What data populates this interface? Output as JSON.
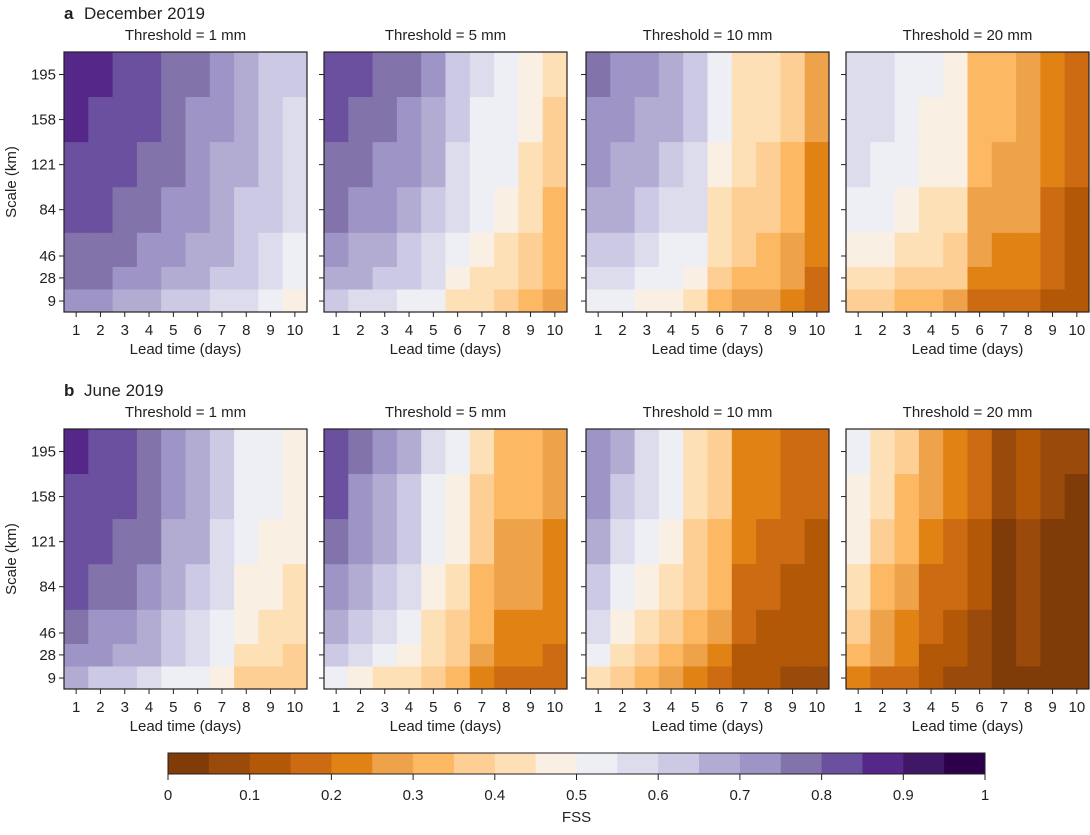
{
  "figure": {
    "sections": [
      {
        "letter": "a",
        "title": "December 2019"
      },
      {
        "letter": "b",
        "title": "June 2019"
      }
    ],
    "colorbar": {
      "label": "FSS",
      "ticks": [
        "0",
        "0.1",
        "0.2",
        "0.3",
        "0.4",
        "0.5",
        "0.6",
        "0.7",
        "0.8",
        "0.9",
        "1"
      ],
      "range": [
        0,
        1
      ],
      "bin_width": 0.05,
      "colors": [
        "#7f3b08",
        "#9a4a0a",
        "#b35806",
        "#cc6b12",
        "#e08214",
        "#eea24a",
        "#fdb863",
        "#fdcf94",
        "#fee0b6",
        "#f9efe3",
        "#eeeff4",
        "#dcdcec",
        "#cbc9e3",
        "#b2abd2",
        "#9e95c6",
        "#8273ab",
        "#6b50a0",
        "#542788",
        "#3f1766",
        "#2d004b"
      ]
    }
  },
  "chart_data": [
    {
      "type": "heatmap",
      "section": "a",
      "month": "December 2019",
      "title": "Threshold = 1 mm",
      "xlabel": "Lead time (days)",
      "ylabel": "Scale (km)",
      "x": [
        1,
        2,
        3,
        4,
        5,
        6,
        7,
        8,
        9,
        10
      ],
      "y": [
        195,
        158,
        121,
        84,
        46,
        28,
        9
      ],
      "ylim": [
        0,
        213.5
      ],
      "values": [
        [
          0.875,
          0.875,
          0.825,
          0.825,
          0.775,
          0.775,
          0.725,
          0.675,
          0.625,
          0.625
        ],
        [
          0.875,
          0.825,
          0.825,
          0.825,
          0.775,
          0.725,
          0.725,
          0.675,
          0.625,
          0.575
        ],
        [
          0.825,
          0.825,
          0.825,
          0.775,
          0.775,
          0.725,
          0.675,
          0.675,
          0.625,
          0.575
        ],
        [
          0.825,
          0.825,
          0.775,
          0.775,
          0.725,
          0.725,
          0.675,
          0.625,
          0.625,
          0.575
        ],
        [
          0.775,
          0.775,
          0.775,
          0.725,
          0.725,
          0.675,
          0.675,
          0.625,
          0.575,
          0.525
        ],
        [
          0.775,
          0.775,
          0.725,
          0.725,
          0.675,
          0.675,
          0.625,
          0.625,
          0.575,
          0.525
        ],
        [
          0.725,
          0.725,
          0.675,
          0.675,
          0.625,
          0.625,
          0.575,
          0.575,
          0.525,
          0.475
        ]
      ]
    },
    {
      "type": "heatmap",
      "section": "a",
      "month": "December 2019",
      "title": "Threshold = 5 mm",
      "xlabel": "Lead time (days)",
      "ylabel": "",
      "x": [
        1,
        2,
        3,
        4,
        5,
        6,
        7,
        8,
        9,
        10
      ],
      "y": [
        195,
        158,
        121,
        84,
        46,
        28,
        9
      ],
      "ylim": [
        0,
        213.5
      ],
      "values": [
        [
          0.825,
          0.825,
          0.775,
          0.775,
          0.725,
          0.625,
          0.575,
          0.525,
          0.475,
          0.425
        ],
        [
          0.825,
          0.775,
          0.775,
          0.725,
          0.675,
          0.625,
          0.525,
          0.525,
          0.475,
          0.375
        ],
        [
          0.775,
          0.775,
          0.725,
          0.725,
          0.675,
          0.575,
          0.525,
          0.525,
          0.425,
          0.375
        ],
        [
          0.775,
          0.725,
          0.725,
          0.675,
          0.625,
          0.575,
          0.525,
          0.475,
          0.425,
          0.325
        ],
        [
          0.725,
          0.675,
          0.675,
          0.625,
          0.575,
          0.525,
          0.475,
          0.425,
          0.375,
          0.325
        ],
        [
          0.675,
          0.675,
          0.625,
          0.625,
          0.575,
          0.475,
          0.425,
          0.425,
          0.375,
          0.325
        ],
        [
          0.625,
          0.575,
          0.575,
          0.525,
          0.525,
          0.425,
          0.425,
          0.375,
          0.325,
          0.275
        ]
      ]
    },
    {
      "type": "heatmap",
      "section": "a",
      "month": "December 2019",
      "title": "Threshold = 10 mm",
      "xlabel": "Lead time (days)",
      "ylabel": "",
      "x": [
        1,
        2,
        3,
        4,
        5,
        6,
        7,
        8,
        9,
        10
      ],
      "y": [
        195,
        158,
        121,
        84,
        46,
        28,
        9
      ],
      "ylim": [
        0,
        213.5
      ],
      "values": [
        [
          0.775,
          0.725,
          0.725,
          0.675,
          0.625,
          0.525,
          0.425,
          0.425,
          0.375,
          0.275
        ],
        [
          0.725,
          0.725,
          0.675,
          0.675,
          0.625,
          0.525,
          0.425,
          0.425,
          0.375,
          0.275
        ],
        [
          0.725,
          0.675,
          0.675,
          0.625,
          0.575,
          0.475,
          0.425,
          0.375,
          0.325,
          0.225
        ],
        [
          0.675,
          0.675,
          0.625,
          0.575,
          0.575,
          0.425,
          0.375,
          0.375,
          0.325,
          0.225
        ],
        [
          0.625,
          0.625,
          0.575,
          0.525,
          0.525,
          0.425,
          0.375,
          0.325,
          0.275,
          0.225
        ],
        [
          0.575,
          0.575,
          0.525,
          0.525,
          0.475,
          0.375,
          0.325,
          0.325,
          0.275,
          0.175
        ],
        [
          0.525,
          0.525,
          0.475,
          0.475,
          0.425,
          0.325,
          0.275,
          0.275,
          0.225,
          0.175
        ]
      ]
    },
    {
      "type": "heatmap",
      "section": "a",
      "month": "December 2019",
      "title": "Threshold = 20 mm",
      "xlabel": "Lead time (days)",
      "ylabel": "",
      "x": [
        1,
        2,
        3,
        4,
        5,
        6,
        7,
        8,
        9,
        10
      ],
      "y": [
        195,
        158,
        121,
        84,
        46,
        28,
        9
      ],
      "ylim": [
        0,
        213.5
      ],
      "values": [
        [
          0.575,
          0.575,
          0.525,
          0.525,
          0.475,
          0.325,
          0.325,
          0.275,
          0.225,
          0.175
        ],
        [
          0.575,
          0.575,
          0.525,
          0.475,
          0.475,
          0.325,
          0.325,
          0.275,
          0.225,
          0.175
        ],
        [
          0.575,
          0.525,
          0.525,
          0.475,
          0.475,
          0.325,
          0.275,
          0.275,
          0.225,
          0.175
        ],
        [
          0.525,
          0.525,
          0.475,
          0.425,
          0.425,
          0.275,
          0.275,
          0.275,
          0.175,
          0.125
        ],
        [
          0.475,
          0.475,
          0.425,
          0.425,
          0.375,
          0.275,
          0.225,
          0.225,
          0.175,
          0.125
        ],
        [
          0.425,
          0.425,
          0.375,
          0.375,
          0.375,
          0.225,
          0.225,
          0.225,
          0.175,
          0.125
        ],
        [
          0.375,
          0.375,
          0.325,
          0.325,
          0.275,
          0.175,
          0.175,
          0.175,
          0.125,
          0.125
        ]
      ]
    },
    {
      "type": "heatmap",
      "section": "b",
      "month": "June 2019",
      "title": "Threshold = 1 mm",
      "xlabel": "Lead time (days)",
      "ylabel": "Scale (km)",
      "x": [
        1,
        2,
        3,
        4,
        5,
        6,
        7,
        8,
        9,
        10
      ],
      "y": [
        195,
        158,
        121,
        84,
        46,
        28,
        9
      ],
      "ylim": [
        0,
        213.5
      ],
      "values": [
        [
          0.875,
          0.825,
          0.825,
          0.775,
          0.725,
          0.675,
          0.625,
          0.525,
          0.525,
          0.475
        ],
        [
          0.825,
          0.825,
          0.825,
          0.775,
          0.725,
          0.675,
          0.625,
          0.525,
          0.525,
          0.475
        ],
        [
          0.825,
          0.825,
          0.775,
          0.775,
          0.675,
          0.675,
          0.575,
          0.525,
          0.475,
          0.475
        ],
        [
          0.825,
          0.775,
          0.775,
          0.725,
          0.675,
          0.625,
          0.575,
          0.475,
          0.475,
          0.425
        ],
        [
          0.775,
          0.725,
          0.725,
          0.675,
          0.625,
          0.575,
          0.525,
          0.475,
          0.425,
          0.425
        ],
        [
          0.725,
          0.725,
          0.675,
          0.675,
          0.625,
          0.575,
          0.525,
          0.425,
          0.425,
          0.375
        ],
        [
          0.675,
          0.625,
          0.625,
          0.575,
          0.525,
          0.525,
          0.475,
          0.375,
          0.375,
          0.375
        ]
      ]
    },
    {
      "type": "heatmap",
      "section": "b",
      "month": "June 2019",
      "title": "Threshold = 5 mm",
      "xlabel": "Lead time (days)",
      "ylabel": "",
      "x": [
        1,
        2,
        3,
        4,
        5,
        6,
        7,
        8,
        9,
        10
      ],
      "y": [
        195,
        158,
        121,
        84,
        46,
        28,
        9
      ],
      "ylim": [
        0,
        213.5
      ],
      "values": [
        [
          0.825,
          0.775,
          0.725,
          0.675,
          0.575,
          0.525,
          0.425,
          0.325,
          0.325,
          0.275
        ],
        [
          0.825,
          0.725,
          0.675,
          0.625,
          0.525,
          0.475,
          0.375,
          0.325,
          0.325,
          0.275
        ],
        [
          0.775,
          0.725,
          0.675,
          0.625,
          0.525,
          0.475,
          0.375,
          0.275,
          0.275,
          0.225
        ],
        [
          0.725,
          0.675,
          0.625,
          0.575,
          0.475,
          0.425,
          0.325,
          0.275,
          0.275,
          0.225
        ],
        [
          0.675,
          0.625,
          0.575,
          0.525,
          0.425,
          0.375,
          0.325,
          0.225,
          0.225,
          0.225
        ],
        [
          0.625,
          0.575,
          0.525,
          0.475,
          0.425,
          0.375,
          0.275,
          0.225,
          0.225,
          0.175
        ],
        [
          0.525,
          0.475,
          0.425,
          0.425,
          0.375,
          0.325,
          0.225,
          0.175,
          0.175,
          0.175
        ]
      ]
    },
    {
      "type": "heatmap",
      "section": "b",
      "month": "June 2019",
      "title": "Threshold = 10 mm",
      "xlabel": "Lead time (days)",
      "ylabel": "",
      "x": [
        1,
        2,
        3,
        4,
        5,
        6,
        7,
        8,
        9,
        10
      ],
      "y": [
        195,
        158,
        121,
        84,
        46,
        28,
        9
      ],
      "ylim": [
        0,
        213.5
      ],
      "values": [
        [
          0.725,
          0.675,
          0.575,
          0.525,
          0.425,
          0.375,
          0.225,
          0.225,
          0.175,
          0.175
        ],
        [
          0.725,
          0.625,
          0.575,
          0.525,
          0.425,
          0.375,
          0.225,
          0.225,
          0.175,
          0.175
        ],
        [
          0.675,
          0.575,
          0.525,
          0.475,
          0.375,
          0.325,
          0.225,
          0.175,
          0.175,
          0.125
        ],
        [
          0.625,
          0.525,
          0.475,
          0.425,
          0.375,
          0.325,
          0.175,
          0.175,
          0.125,
          0.125
        ],
        [
          0.575,
          0.475,
          0.425,
          0.375,
          0.325,
          0.275,
          0.175,
          0.125,
          0.125,
          0.125
        ],
        [
          0.525,
          0.425,
          0.375,
          0.325,
          0.275,
          0.225,
          0.125,
          0.125,
          0.125,
          0.125
        ],
        [
          0.425,
          0.375,
          0.325,
          0.275,
          0.225,
          0.175,
          0.125,
          0.125,
          0.075,
          0.075
        ]
      ]
    },
    {
      "type": "heatmap",
      "section": "b",
      "month": "June 2019",
      "title": "Threshold = 20 mm",
      "xlabel": "Lead time (days)",
      "ylabel": "",
      "x": [
        1,
        2,
        3,
        4,
        5,
        6,
        7,
        8,
        9,
        10
      ],
      "y": [
        195,
        158,
        121,
        84,
        46,
        28,
        9
      ],
      "ylim": [
        0,
        213.5
      ],
      "values": [
        [
          0.525,
          0.425,
          0.375,
          0.275,
          0.225,
          0.175,
          0.075,
          0.125,
          0.075,
          0.075
        ],
        [
          0.475,
          0.425,
          0.325,
          0.275,
          0.225,
          0.175,
          0.075,
          0.125,
          0.075,
          0.025
        ],
        [
          0.475,
          0.375,
          0.325,
          0.225,
          0.175,
          0.125,
          0.025,
          0.075,
          0.025,
          0.025
        ],
        [
          0.425,
          0.325,
          0.275,
          0.175,
          0.175,
          0.125,
          0.025,
          0.075,
          0.025,
          0.025
        ],
        [
          0.375,
          0.275,
          0.225,
          0.175,
          0.125,
          0.075,
          0.025,
          0.075,
          0.025,
          0.025
        ],
        [
          0.325,
          0.275,
          0.225,
          0.125,
          0.125,
          0.075,
          0.025,
          0.075,
          0.025,
          0.025
        ],
        [
          0.225,
          0.175,
          0.175,
          0.125,
          0.075,
          0.075,
          0.025,
          0.025,
          0.025,
          0.025
        ]
      ]
    }
  ]
}
